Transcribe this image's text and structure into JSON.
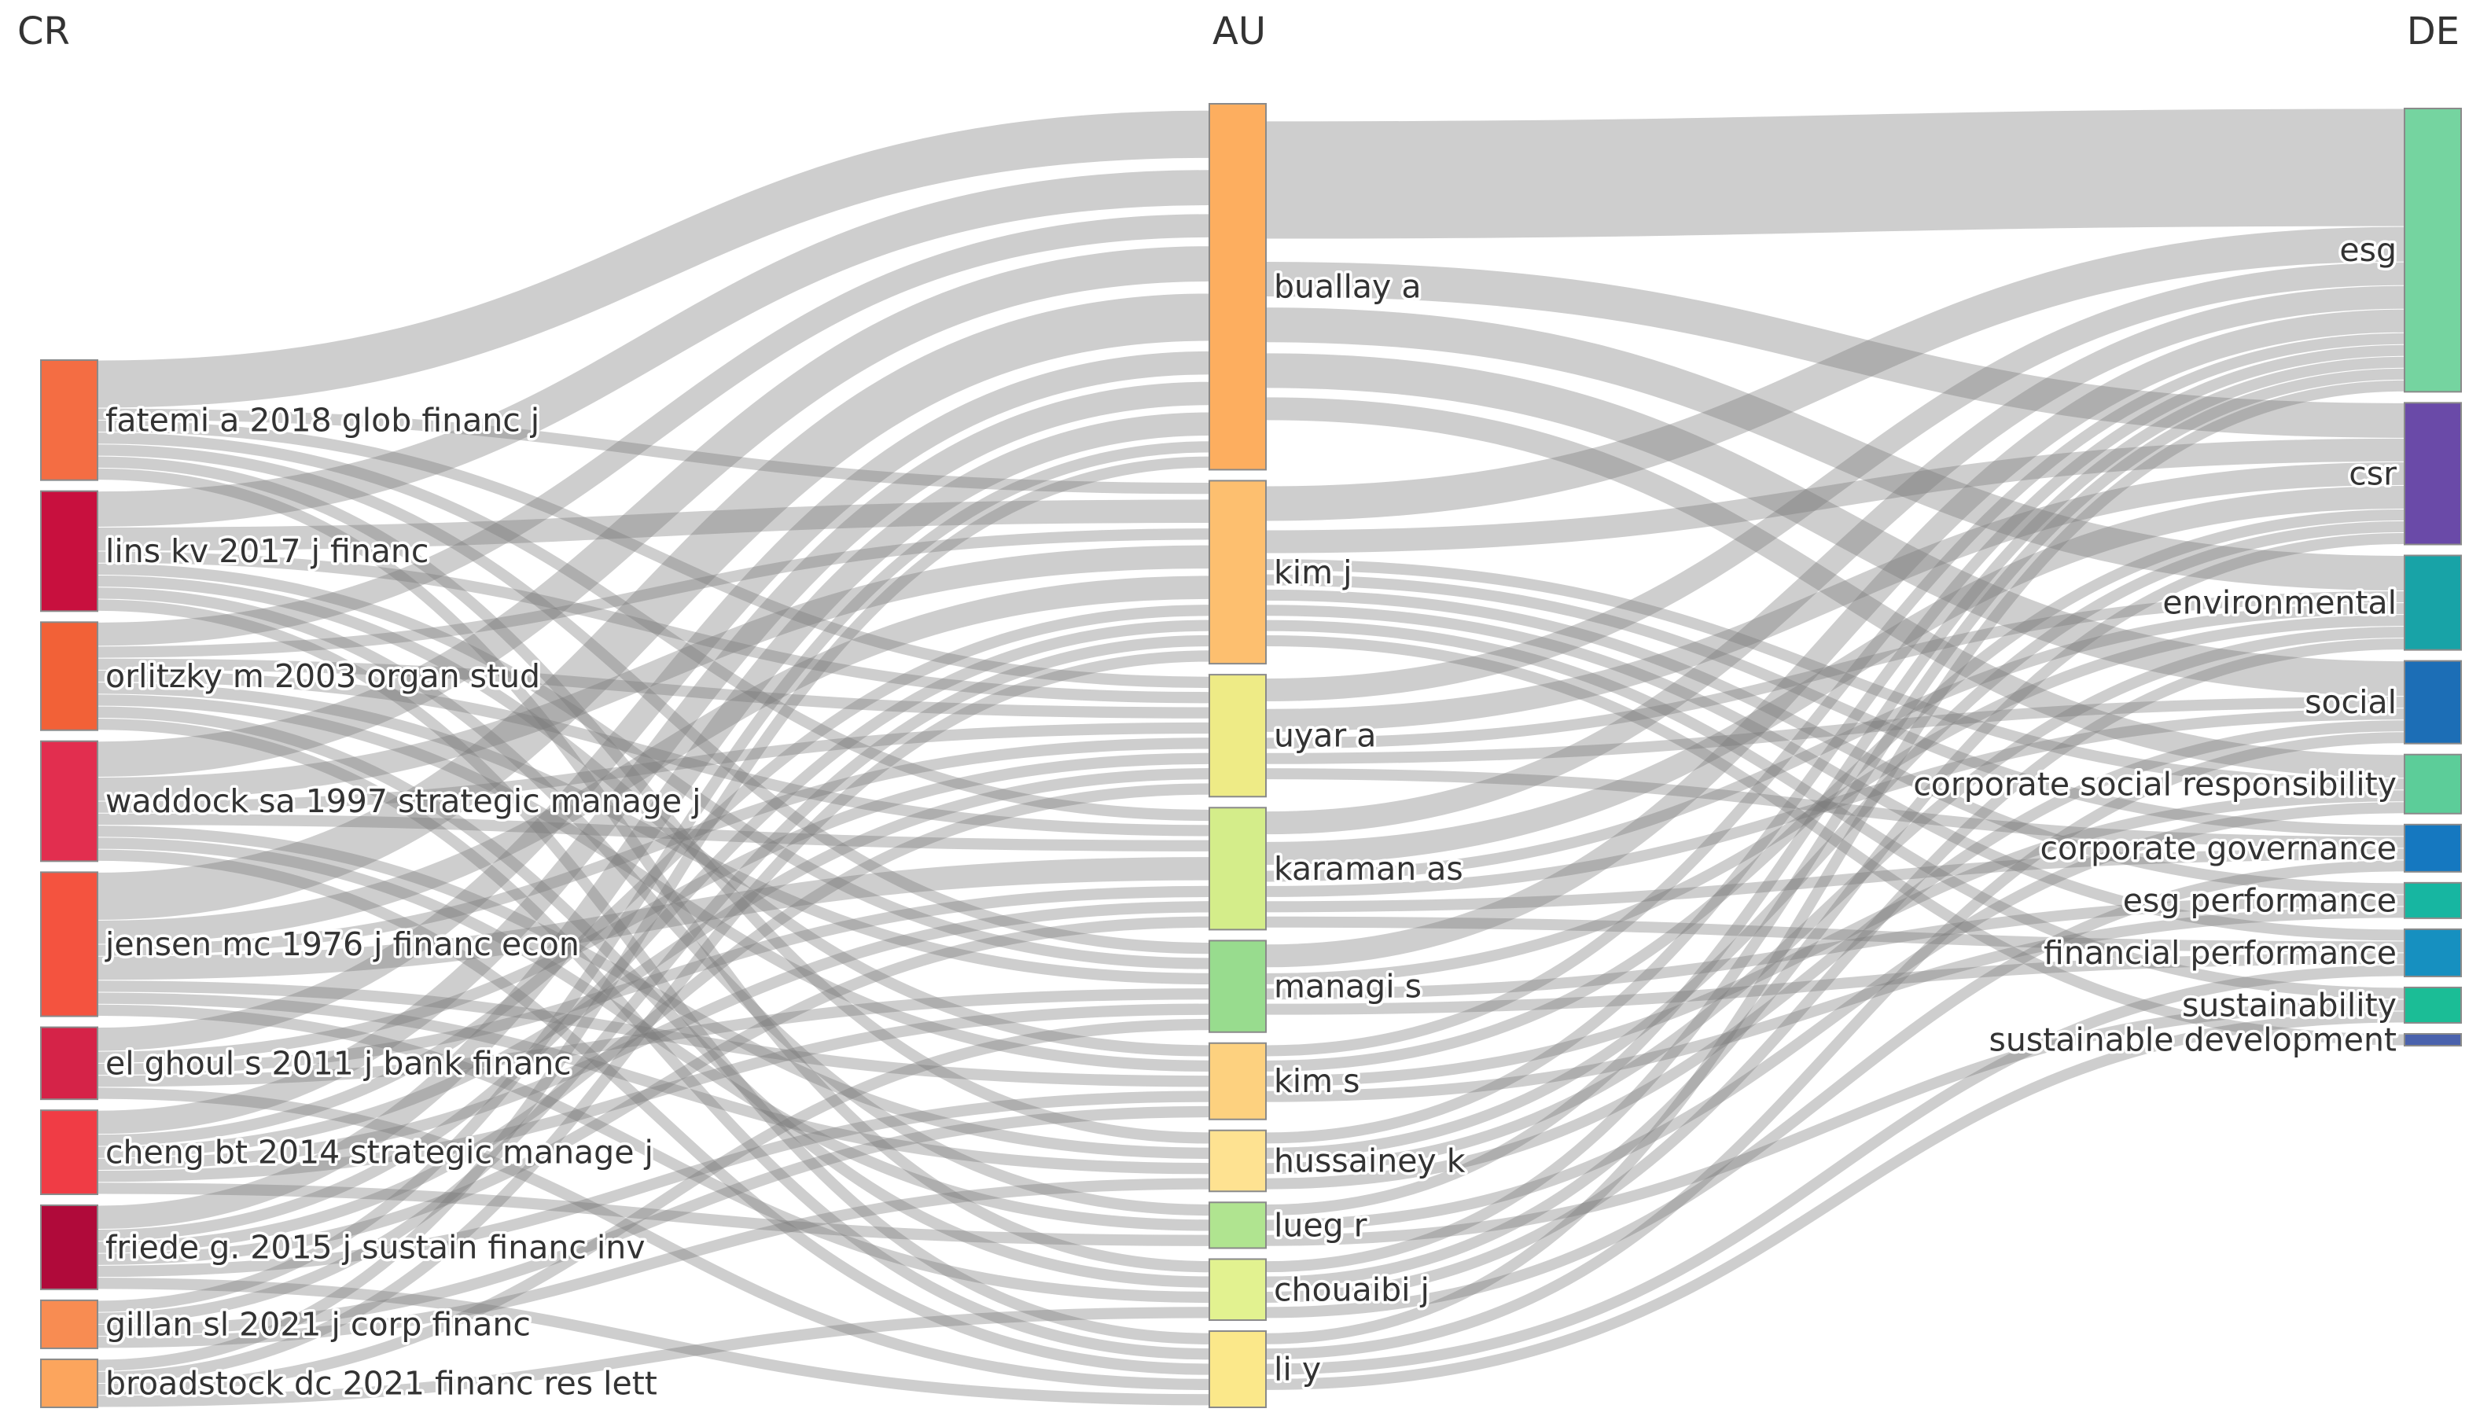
{
  "columns": {
    "left": "CR",
    "middle": "AU",
    "right": "DE"
  },
  "nodes": {
    "CR": [
      {
        "label": "fatemi a 2018 glob financ j",
        "color": "#f46d43"
      },
      {
        "label": "lins kv 2017 j financ",
        "color": "#c8103e"
      },
      {
        "label": "orlitzky m 2003 organ stud",
        "color": "#f26137"
      },
      {
        "label": "waddock sa 1997 strategic manage j",
        "color": "#e22e4f"
      },
      {
        "label": "jensen mc 1976 j financ econ",
        "color": "#f4533f"
      },
      {
        "label": "el ghoul s 2011 j bank financ",
        "color": "#d52348"
      },
      {
        "label": "cheng bt 2014 strategic manage j",
        "color": "#f03c45"
      },
      {
        "label": "friede g. 2015 j sustain financ inv",
        "color": "#b00a3a"
      },
      {
        "label": "gillan sl 2021 j corp financ",
        "color": "#f88c52"
      },
      {
        "label": "broadstock dc 2021 financ res lett",
        "color": "#fca55d"
      }
    ],
    "AU": [
      {
        "label": "buallay a",
        "color": "#fdae5f"
      },
      {
        "label": "kim j",
        "color": "#fdbf6f"
      },
      {
        "label": "uyar a",
        "color": "#eeeb86"
      },
      {
        "label": "karaman as",
        "color": "#d4ed8a"
      },
      {
        "label": "managi s",
        "color": "#98dc8e"
      },
      {
        "label": "kim s",
        "color": "#fdd17f"
      },
      {
        "label": "hussainey k",
        "color": "#fee291"
      },
      {
        "label": "lueg r",
        "color": "#b0e490"
      },
      {
        "label": "chouaibi j",
        "color": "#e2f290"
      },
      {
        "label": "li y",
        "color": "#fbe88a"
      }
    ],
    "DE": [
      {
        "label": "esg",
        "color": "#75d4a0"
      },
      {
        "label": "csr",
        "color": "#6a4aa8"
      },
      {
        "label": "environmental",
        "color": "#18a3a7"
      },
      {
        "label": "social",
        "color": "#1c6eb6"
      },
      {
        "label": "corporate social responsibility",
        "color": "#5ccd99"
      },
      {
        "label": "corporate governance",
        "color": "#1578c0"
      },
      {
        "label": "esg performance",
        "color": "#17b6a1"
      },
      {
        "label": "financial performance",
        "color": "#1690c0"
      },
      {
        "label": "sustainability",
        "color": "#1bbd96"
      },
      {
        "label": "sustainable development",
        "color": "#4a62ad"
      }
    ]
  },
  "links": {
    "CR_AU": [
      [
        "fatemi a 2018 glob financ j",
        "buallay a",
        4
      ],
      [
        "fatemi a 2018 glob financ j",
        "kim j",
        1
      ],
      [
        "fatemi a 2018 glob financ j",
        "uyar a",
        1
      ],
      [
        "fatemi a 2018 glob financ j",
        "karaman as",
        1
      ],
      [
        "fatemi a 2018 glob financ j",
        "managi s",
        1
      ],
      [
        "fatemi a 2018 glob financ j",
        "hussainey k",
        1
      ],
      [
        "fatemi a 2018 glob financ j",
        "chouaibi j",
        1
      ],
      [
        "lins kv 2017 j financ",
        "buallay a",
        3
      ],
      [
        "lins kv 2017 j financ",
        "kim j",
        2
      ],
      [
        "lins kv 2017 j financ",
        "uyar a",
        1
      ],
      [
        "lins kv 2017 j financ",
        "managi s",
        1
      ],
      [
        "lins kv 2017 j financ",
        "kim s",
        1
      ],
      [
        "lins kv 2017 j financ",
        "lueg r",
        1
      ],
      [
        "lins kv 2017 j financ",
        "li y",
        1
      ],
      [
        "orlitzky m 2003 organ stud",
        "buallay a",
        2
      ],
      [
        "orlitzky m 2003 organ stud",
        "kim j",
        1
      ],
      [
        "orlitzky m 2003 organ stud",
        "uyar a",
        1
      ],
      [
        "orlitzky m 2003 organ stud",
        "karaman as",
        1
      ],
      [
        "orlitzky m 2003 organ stud",
        "managi s",
        1
      ],
      [
        "orlitzky m 2003 organ stud",
        "kim s",
        1
      ],
      [
        "orlitzky m 2003 organ stud",
        "chouaibi j",
        1
      ],
      [
        "orlitzky m 2003 organ stud",
        "li y",
        1
      ],
      [
        "waddock sa 1997 strategic manage j",
        "buallay a",
        3
      ],
      [
        "waddock sa 1997 strategic manage j",
        "kim j",
        2
      ],
      [
        "waddock sa 1997 strategic manage j",
        "uyar a",
        1
      ],
      [
        "waddock sa 1997 strategic manage j",
        "karaman as",
        1
      ],
      [
        "waddock sa 1997 strategic manage j",
        "hussainey k",
        1
      ],
      [
        "waddock sa 1997 strategic manage j",
        "lueg r",
        1
      ],
      [
        "waddock sa 1997 strategic manage j",
        "li y",
        1
      ],
      [
        "jensen mc 1976 j financ econ",
        "buallay a",
        4
      ],
      [
        "jensen mc 1976 j financ econ",
        "kim j",
        2
      ],
      [
        "jensen mc 1976 j financ econ",
        "uyar a",
        1
      ],
      [
        "jensen mc 1976 j financ econ",
        "karaman as",
        2
      ],
      [
        "jensen mc 1976 j financ econ",
        "kim s",
        1
      ],
      [
        "jensen mc 1976 j financ econ",
        "hussainey k",
        1
      ],
      [
        "jensen mc 1976 j financ econ",
        "chouaibi j",
        1
      ],
      [
        "el ghoul s 2011 j bank financ",
        "buallay a",
        2
      ],
      [
        "el ghoul s 2011 j bank financ",
        "uyar a",
        1
      ],
      [
        "el ghoul s 2011 j bank financ",
        "karaman as",
        1
      ],
      [
        "el ghoul s 2011 j bank financ",
        "managi s",
        1
      ],
      [
        "el ghoul s 2011 j bank financ",
        "li y",
        1
      ],
      [
        "cheng bt 2014 strategic manage j",
        "buallay a",
        2
      ],
      [
        "cheng bt 2014 strategic manage j",
        "kim j",
        1
      ],
      [
        "cheng bt 2014 strategic manage j",
        "uyar a",
        1
      ],
      [
        "cheng bt 2014 strategic manage j",
        "karaman as",
        1
      ],
      [
        "cheng bt 2014 strategic manage j",
        "managi s",
        1
      ],
      [
        "cheng bt 2014 strategic manage j",
        "lueg r",
        1
      ],
      [
        "friede g. 2015 j sustain financ inv",
        "buallay a",
        2
      ],
      [
        "friede g. 2015 j sustain financ inv",
        "kim j",
        1
      ],
      [
        "friede g. 2015 j sustain financ inv",
        "uyar a",
        1
      ],
      [
        "friede g. 2015 j sustain financ inv",
        "karaman as",
        1
      ],
      [
        "friede g. 2015 j sustain financ inv",
        "kim s",
        1
      ],
      [
        "friede g. 2015 j sustain financ inv",
        "li y",
        1
      ],
      [
        "gillan sl 2021 j corp financ",
        "buallay a",
        1
      ],
      [
        "gillan sl 2021 j corp financ",
        "kim j",
        1
      ],
      [
        "gillan sl 2021 j corp financ",
        "kim s",
        1
      ],
      [
        "gillan sl 2021 j corp financ",
        "hussainey k",
        1
      ],
      [
        "broadstock dc 2021 financ res lett",
        "buallay a",
        1
      ],
      [
        "broadstock dc 2021 financ res lett",
        "kim j",
        1
      ],
      [
        "broadstock dc 2021 financ res lett",
        "managi s",
        1
      ],
      [
        "broadstock dc 2021 financ res lett",
        "chouaibi j",
        1
      ]
    ],
    "AU_DE": [
      [
        "buallay a",
        "esg",
        10
      ],
      [
        "buallay a",
        "csr",
        3
      ],
      [
        "buallay a",
        "environmental",
        3
      ],
      [
        "buallay a",
        "social",
        3
      ],
      [
        "buallay a",
        "corporate social responsibility",
        2
      ],
      [
        "kim j",
        "esg",
        3
      ],
      [
        "kim j",
        "csr",
        2
      ],
      [
        "kim j",
        "corporate social responsibility",
        1
      ],
      [
        "kim j",
        "corporate governance",
        1
      ],
      [
        "kim j",
        "esg performance",
        1
      ],
      [
        "kim j",
        "financial performance",
        1
      ],
      [
        "kim j",
        "sustainability",
        1
      ],
      [
        "kim j",
        "sustainable development",
        1
      ],
      [
        "uyar a",
        "esg",
        2
      ],
      [
        "uyar a",
        "csr",
        2
      ],
      [
        "uyar a",
        "environmental",
        1
      ],
      [
        "uyar a",
        "social",
        1
      ],
      [
        "uyar a",
        "corporate governance",
        1
      ],
      [
        "karaman as",
        "esg",
        2
      ],
      [
        "karaman as",
        "csr",
        2
      ],
      [
        "karaman as",
        "environmental",
        1
      ],
      [
        "karaman as",
        "social",
        1
      ],
      [
        "karaman as",
        "corporate governance",
        1
      ],
      [
        "karaman as",
        "financial performance",
        1
      ],
      [
        "managi s",
        "esg",
        2
      ],
      [
        "managi s",
        "environmental",
        1
      ],
      [
        "managi s",
        "esg performance",
        1
      ],
      [
        "managi s",
        "financial performance",
        1
      ],
      [
        "kim s",
        "esg",
        1
      ],
      [
        "kim s",
        "csr",
        1
      ],
      [
        "kim s",
        "corporate social responsibility",
        1
      ],
      [
        "kim s",
        "esg performance",
        1
      ],
      [
        "hussainey k",
        "esg",
        1
      ],
      [
        "hussainey k",
        "csr",
        1
      ],
      [
        "hussainey k",
        "environmental",
        1
      ],
      [
        "hussainey k",
        "social",
        1
      ],
      [
        "lueg r",
        "esg",
        1
      ],
      [
        "lueg r",
        "corporate social responsibility",
        1
      ],
      [
        "lueg r",
        "sustainability",
        1
      ],
      [
        "chouaibi j",
        "esg",
        1
      ],
      [
        "chouaibi j",
        "csr",
        1
      ],
      [
        "chouaibi j",
        "environmental",
        1
      ],
      [
        "chouaibi j",
        "corporate governance",
        1
      ],
      [
        "li y",
        "esg",
        1
      ],
      [
        "li y",
        "social",
        1
      ],
      [
        "li y",
        "financial performance",
        1
      ],
      [
        "li y",
        "sustainability",
        1
      ]
    ]
  }
}
